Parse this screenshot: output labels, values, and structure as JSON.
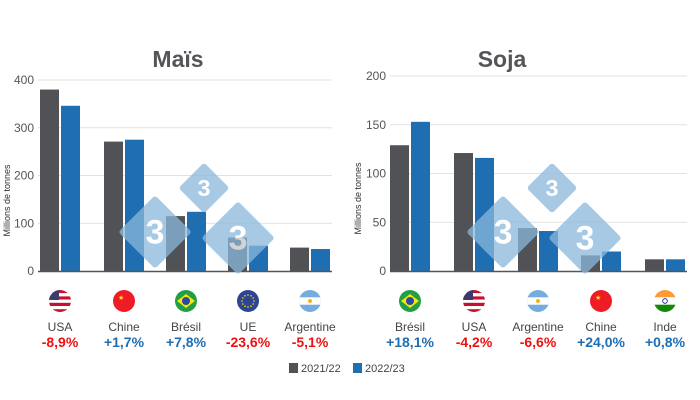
{
  "colors": {
    "series_2021": "#505256",
    "series_2022": "#1f6eb2",
    "positive": "#1f6eb2",
    "negative": "#ee1111",
    "watermark": "#8ab8dc"
  },
  "legend": {
    "position": "bottom-center",
    "items": [
      "2021/22",
      "2022/23"
    ]
  },
  "watermark": {
    "text": "3"
  },
  "chart_data": [
    {
      "type": "bar",
      "title": "Maïs",
      "ylabel": "Millions de tonnes",
      "ylim": [
        0,
        400
      ],
      "yticks": [
        "0",
        "100",
        "200",
        "300",
        "400"
      ],
      "grid": true,
      "categories": [
        "USA",
        "Chine",
        "Brésil",
        "UE",
        "Argentine"
      ],
      "flags": [
        "flag-usa",
        "flag-china",
        "flag-brazil",
        "flag-eu",
        "flag-argentina"
      ],
      "changes": [
        "-8,9%",
        "+1,7%",
        "+7,8%",
        "-23,6%",
        "-5,1%"
      ],
      "series": [
        {
          "name": "2021/22",
          "values": [
            380,
            271,
            115,
            70,
            49
          ]
        },
        {
          "name": "2022/23",
          "values": [
            346,
            275,
            124,
            53,
            46
          ]
        }
      ]
    },
    {
      "type": "bar",
      "title": "Soja",
      "ylabel": "Millions de tonnes",
      "ylim": [
        0,
        200
      ],
      "yticks": [
        "0",
        "50",
        "100",
        "150",
        "200"
      ],
      "grid": true,
      "categories": [
        "Brésil",
        "USA",
        "Argentine",
        "Chine",
        "Inde"
      ],
      "flags": [
        "flag-brazil",
        "flag-usa",
        "flag-argentina",
        "flag-china",
        "flag-india"
      ],
      "changes": [
        "+18,1%",
        "-4,2%",
        "-6,6%",
        "+24,0%",
        "+0,8%"
      ],
      "series": [
        {
          "name": "2021/22",
          "values": [
            129,
            121,
            44,
            16,
            12
          ]
        },
        {
          "name": "2022/23",
          "values": [
            153,
            116,
            41,
            20,
            12
          ]
        }
      ]
    }
  ]
}
